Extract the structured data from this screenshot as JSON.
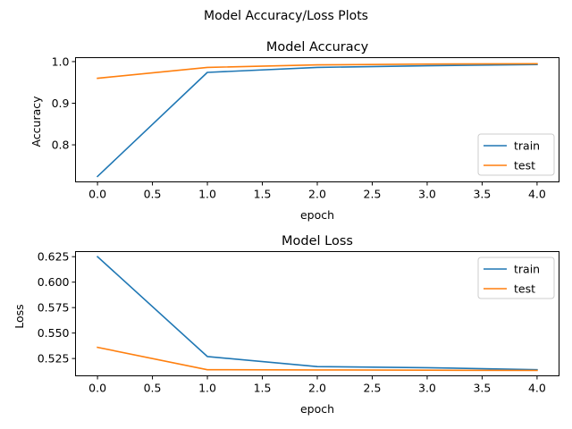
{
  "figure": {
    "suptitle": "Model Accuracy/Loss Plots"
  },
  "colors": {
    "train": "#1f77b4",
    "test": "#ff7f0e"
  },
  "chart_data": [
    {
      "type": "line",
      "title": "Model Accuracy",
      "xlabel": "epoch",
      "ylabel": "Accuracy",
      "x": [
        0,
        1,
        2,
        3,
        4
      ],
      "xlim": [
        -0.2,
        4.2
      ],
      "ylim": [
        0.711,
        1.0095
      ],
      "xticks": [
        0,
        0.5,
        1,
        1.5,
        2,
        2.5,
        3,
        3.5,
        4
      ],
      "xtick_labels": [
        "0.0",
        "0.5",
        "1.0",
        "1.5",
        "2.0",
        "2.5",
        "3.0",
        "3.5",
        "4.0"
      ],
      "yticks": [
        0.8,
        0.9,
        1.0
      ],
      "ytick_labels": [
        "0.8",
        "0.9",
        "1.0"
      ],
      "legend_placement": "lower-right",
      "grid": false,
      "series": [
        {
          "name": "train",
          "color": "#1f77b4",
          "values": [
            0.724,
            0.974,
            0.986,
            0.99,
            0.993
          ]
        },
        {
          "name": "test",
          "color": "#ff7f0e",
          "values": [
            0.96,
            0.986,
            0.992,
            0.994,
            0.995
          ]
        }
      ]
    },
    {
      "type": "line",
      "title": "Model Loss",
      "xlabel": "epoch",
      "ylabel": "Loss",
      "x": [
        0,
        1,
        2,
        3,
        4
      ],
      "xlim": [
        -0.2,
        4.2
      ],
      "ylim": [
        0.508,
        0.63
      ],
      "xticks": [
        0,
        0.5,
        1,
        1.5,
        2,
        2.5,
        3,
        3.5,
        4
      ],
      "xtick_labels": [
        "0.0",
        "0.5",
        "1.0",
        "1.5",
        "2.0",
        "2.5",
        "3.0",
        "3.5",
        "4.0"
      ],
      "yticks": [
        0.525,
        0.55,
        0.575,
        0.6,
        0.625
      ],
      "ytick_labels": [
        "0.525",
        "0.550",
        "0.575",
        "0.600",
        "0.625"
      ],
      "legend_placement": "upper-right",
      "grid": false,
      "series": [
        {
          "name": "train",
          "color": "#1f77b4",
          "values": [
            0.625,
            0.527,
            0.517,
            0.516,
            0.514
          ]
        },
        {
          "name": "test",
          "color": "#ff7f0e",
          "values": [
            0.536,
            0.514,
            0.5138,
            0.5135,
            0.5133
          ]
        }
      ]
    }
  ]
}
